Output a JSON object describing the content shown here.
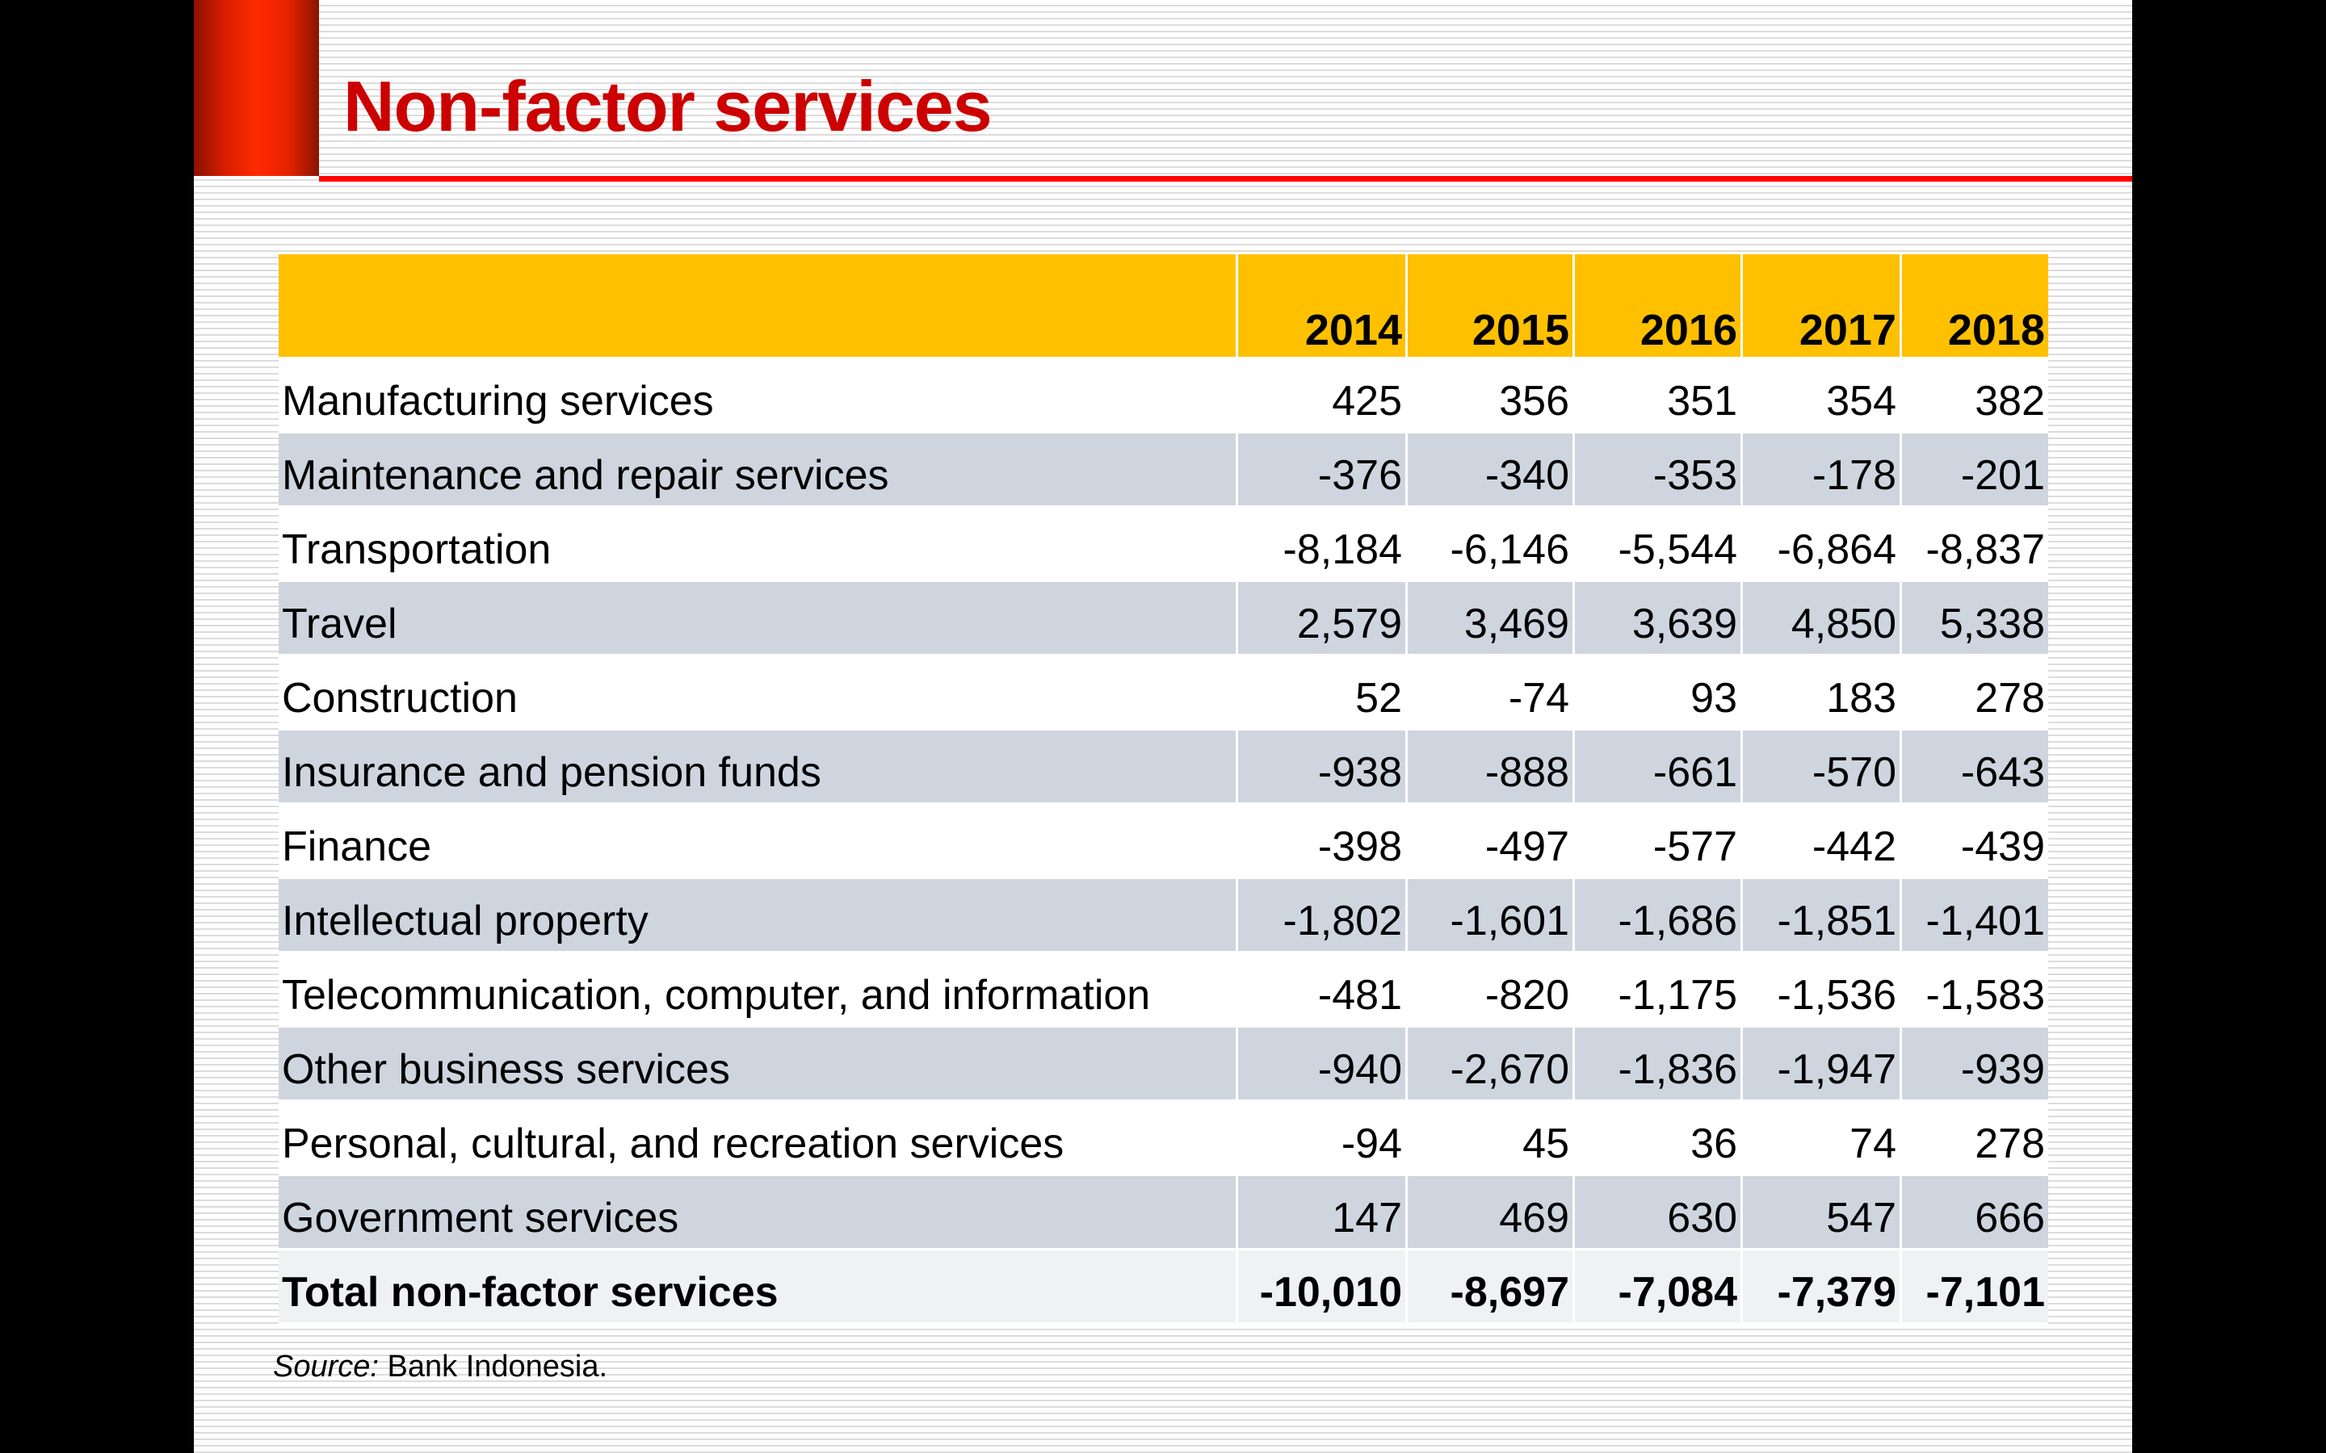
{
  "slide": {
    "title": "Non-factor services",
    "colors": {
      "title": "#cc0000",
      "rule": "#ff0000",
      "header_fill": "#ffc000",
      "band_fill": "#cfd5de",
      "total_fill": "#f0f1f3"
    }
  },
  "table": {
    "header_label": "",
    "years": [
      "2014",
      "2015",
      "2016",
      "2017",
      "2018"
    ],
    "rows": [
      {
        "label": "Manufacturing services",
        "values": [
          "425",
          "356",
          "351",
          "354",
          "382"
        ]
      },
      {
        "label": "Maintenance and repair services",
        "values": [
          "-376",
          "-340",
          "-353",
          "-178",
          "-201"
        ]
      },
      {
        "label": "Transportation",
        "values": [
          "-8,184",
          "-6,146",
          "-5,544",
          "-6,864",
          "-8,837"
        ]
      },
      {
        "label": "Travel",
        "values": [
          "2,579",
          "3,469",
          "3,639",
          "4,850",
          "5,338"
        ]
      },
      {
        "label": "Construction",
        "values": [
          "52",
          "-74",
          "93",
          "183",
          "278"
        ]
      },
      {
        "label": "Insurance and pension funds",
        "values": [
          "-938",
          "-888",
          "-661",
          "-570",
          "-643"
        ]
      },
      {
        "label": "Finance",
        "values": [
          "-398",
          "-497",
          "-577",
          "-442",
          "-439"
        ]
      },
      {
        "label": "Intellectual property",
        "values": [
          "-1,802",
          "-1,601",
          "-1,686",
          "-1,851",
          "-1,401"
        ]
      },
      {
        "label": "Telecommunication, computer, and information",
        "values": [
          "-481",
          "-820",
          "-1,175",
          "-1,536",
          "-1,583"
        ]
      },
      {
        "label": "Other business services",
        "values": [
          "-940",
          "-2,670",
          "-1,836",
          "-1,947",
          "-939"
        ]
      },
      {
        "label": "Personal, cultural, and recreation services",
        "values": [
          "-94",
          "45",
          "36",
          "74",
          "278"
        ]
      },
      {
        "label": "Government services",
        "values": [
          "147",
          "469",
          "630",
          "547",
          "666"
        ]
      }
    ],
    "total": {
      "label": "Total non-factor services",
      "values": [
        "-10,010",
        "-8,697",
        "-7,084",
        "-7,379",
        "-7,101"
      ]
    }
  },
  "footer": {
    "source_label": "Source:",
    "source_text": " Bank Indonesia."
  }
}
